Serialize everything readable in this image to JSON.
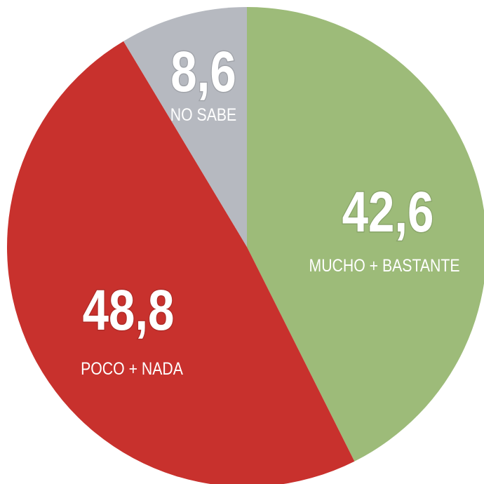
{
  "chart_data": {
    "type": "pie",
    "categories": [
      "MUCHO + BASTANTE",
      "POCO + NADA",
      "NO SABE"
    ],
    "values": [
      42.6,
      48.8,
      8.6
    ],
    "value_labels": [
      "42,6",
      "48,8",
      "8,6"
    ],
    "colors": [
      "#9dbb79",
      "#c8312d",
      "#b6b9c0"
    ]
  }
}
